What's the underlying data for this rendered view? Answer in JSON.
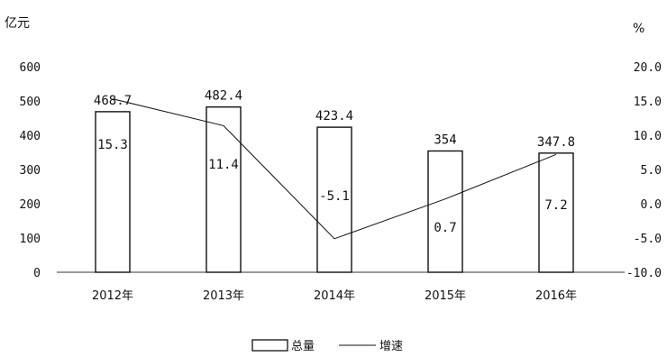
{
  "chart_data": {
    "type": "bar+line",
    "categories": [
      "2012年",
      "2013年",
      "2014年",
      "2015年",
      "2016年"
    ],
    "series": [
      {
        "name": "总量",
        "type": "bar",
        "axis": "left",
        "values": [
          468.7,
          482.4,
          423.4,
          354,
          347.8
        ],
        "labels": [
          "468.7",
          "482.4",
          "423.4",
          "354",
          "347.8"
        ]
      },
      {
        "name": "增速",
        "type": "line",
        "axis": "right",
        "values": [
          15.3,
          11.4,
          -5.1,
          0.7,
          7.2
        ],
        "labels": [
          "15.3",
          "11.4",
          "-5.1",
          "0.7",
          "7.2"
        ]
      }
    ],
    "left_axis": {
      "unit": "亿元",
      "ylim": [
        0,
        600
      ],
      "ticks": [
        "0",
        "100",
        "200",
        "300",
        "400",
        "500",
        "600"
      ]
    },
    "right_axis": {
      "unit": "%",
      "ylim": [
        -10,
        20
      ],
      "ticks": [
        "-10.0",
        "-5.0",
        "0.0",
        "5.0",
        "10.0",
        "15.0",
        "20.0"
      ]
    },
    "grid": false,
    "legend_position": "bottom-center",
    "legend": [
      "总量",
      "增速"
    ]
  }
}
